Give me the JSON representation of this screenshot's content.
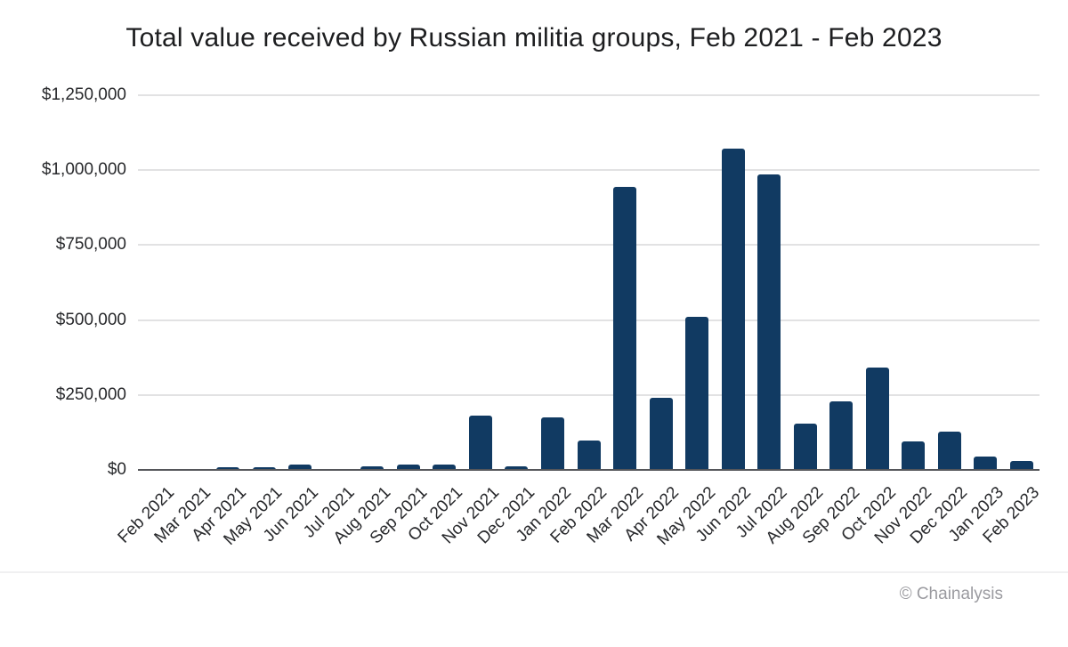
{
  "page": {
    "background": "#ffffff",
    "text_color": "#28292c"
  },
  "chart_data": {
    "type": "bar",
    "title": "Total value received by Russian militia groups, Feb 2021 - Feb 2023",
    "categories": [
      "Feb 2021",
      "Mar 2021",
      "Apr 2021",
      "May 2021",
      "Jun 2021",
      "Jul 2021",
      "Aug 2021",
      "Sep 2021",
      "Oct 2021",
      "Nov 2021",
      "Dec 2021",
      "Jan 2022",
      "Feb 2022",
      "Mar 2022",
      "Apr 2022",
      "May 2022",
      "Jun 2022",
      "Jul 2022",
      "Aug 2022",
      "Sep 2022",
      "Oct 2022",
      "Nov 2022",
      "Dec 2022",
      "Jan 2023",
      "Feb 2023"
    ],
    "values": [
      0,
      0,
      10000,
      9000,
      19000,
      0,
      13000,
      18000,
      17000,
      180000,
      12000,
      176000,
      99000,
      943000,
      241000,
      512000,
      1071000,
      985000,
      155000,
      230000,
      342000,
      95000,
      129000,
      45000,
      30000
    ],
    "xlabel": "",
    "ylabel": "",
    "ylim": [
      0,
      1250000
    ],
    "ytick_values": [
      0,
      250000,
      500000,
      750000,
      1000000,
      1250000
    ],
    "ytick_labels": [
      "$0",
      "$250,000",
      "$500,000",
      "$750,000",
      "$1,000,000",
      "$1,250,000"
    ],
    "grid": true,
    "legend": false,
    "bar_color": "#113A62",
    "gridline_color": "#e2e2e3",
    "axis_color": "#55565a",
    "xtick_rotation_deg": -45
  },
  "footer": {
    "attribution": "© Chainalysis"
  }
}
